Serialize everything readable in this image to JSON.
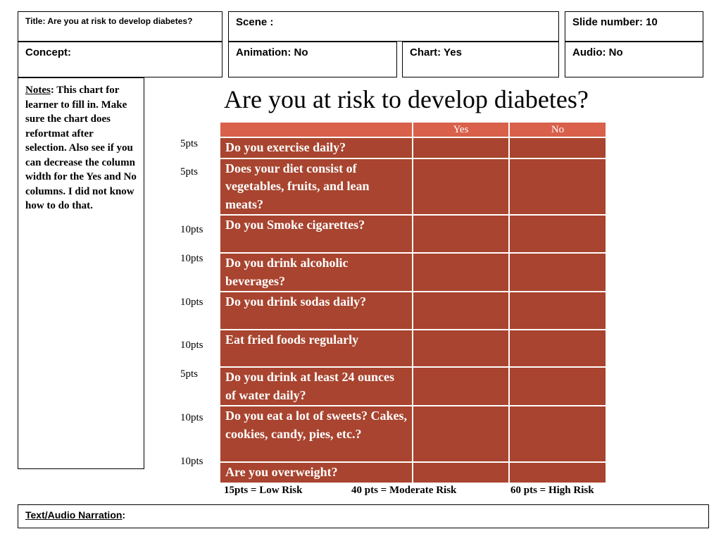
{
  "header": {
    "title": "Title: Are you at risk to develop diabetes?",
    "scene": "Scene :",
    "slide_number": "Slide number: 10",
    "concept": "Concept:",
    "animation": "Animation: No",
    "chart": "Chart: Yes",
    "audio": "Audio:   No"
  },
  "notes": {
    "label": "Notes",
    "text": ": This chart for learner to fill in. Make sure the chart does refortmat after selection.  Also see if you can decrease the column width for the Yes and No columns.  I did not know how to do that."
  },
  "slide": {
    "heading": "Are you at risk to develop diabetes?",
    "columns": [
      "",
      "Yes",
      "No"
    ],
    "rows": [
      {
        "question": "Do you exercise daily?"
      },
      {
        "question": "Does your diet consist of vegetables, fruits, and lean meats?"
      },
      {
        "question": "Do you Smoke cigarettes?"
      },
      {
        "question": "Do you drink alcoholic beverages?"
      },
      {
        "question": "Do you drink sodas daily?"
      },
      {
        "question": "Eat fried foods regularly"
      },
      {
        "question": "Do you drink at least 24 ounces of water daily?"
      },
      {
        "question": "Do you eat a lot of sweets?  Cakes,  cookies, candy, pies, etc.?"
      },
      {
        "question": "Are you overweight?"
      }
    ],
    "points": [
      "5pts",
      "5pts",
      "10pts",
      "10pts",
      "10pts",
      "10pts",
      "5pts",
      "10pts",
      "10pts"
    ],
    "legend": {
      "low": "15pts = Low Risk",
      "moderate": "40 pts = Moderate Risk",
      "high": "60 pts = High Risk"
    }
  },
  "narration": {
    "label": "Text/Audio Narration",
    "suffix": ":"
  }
}
